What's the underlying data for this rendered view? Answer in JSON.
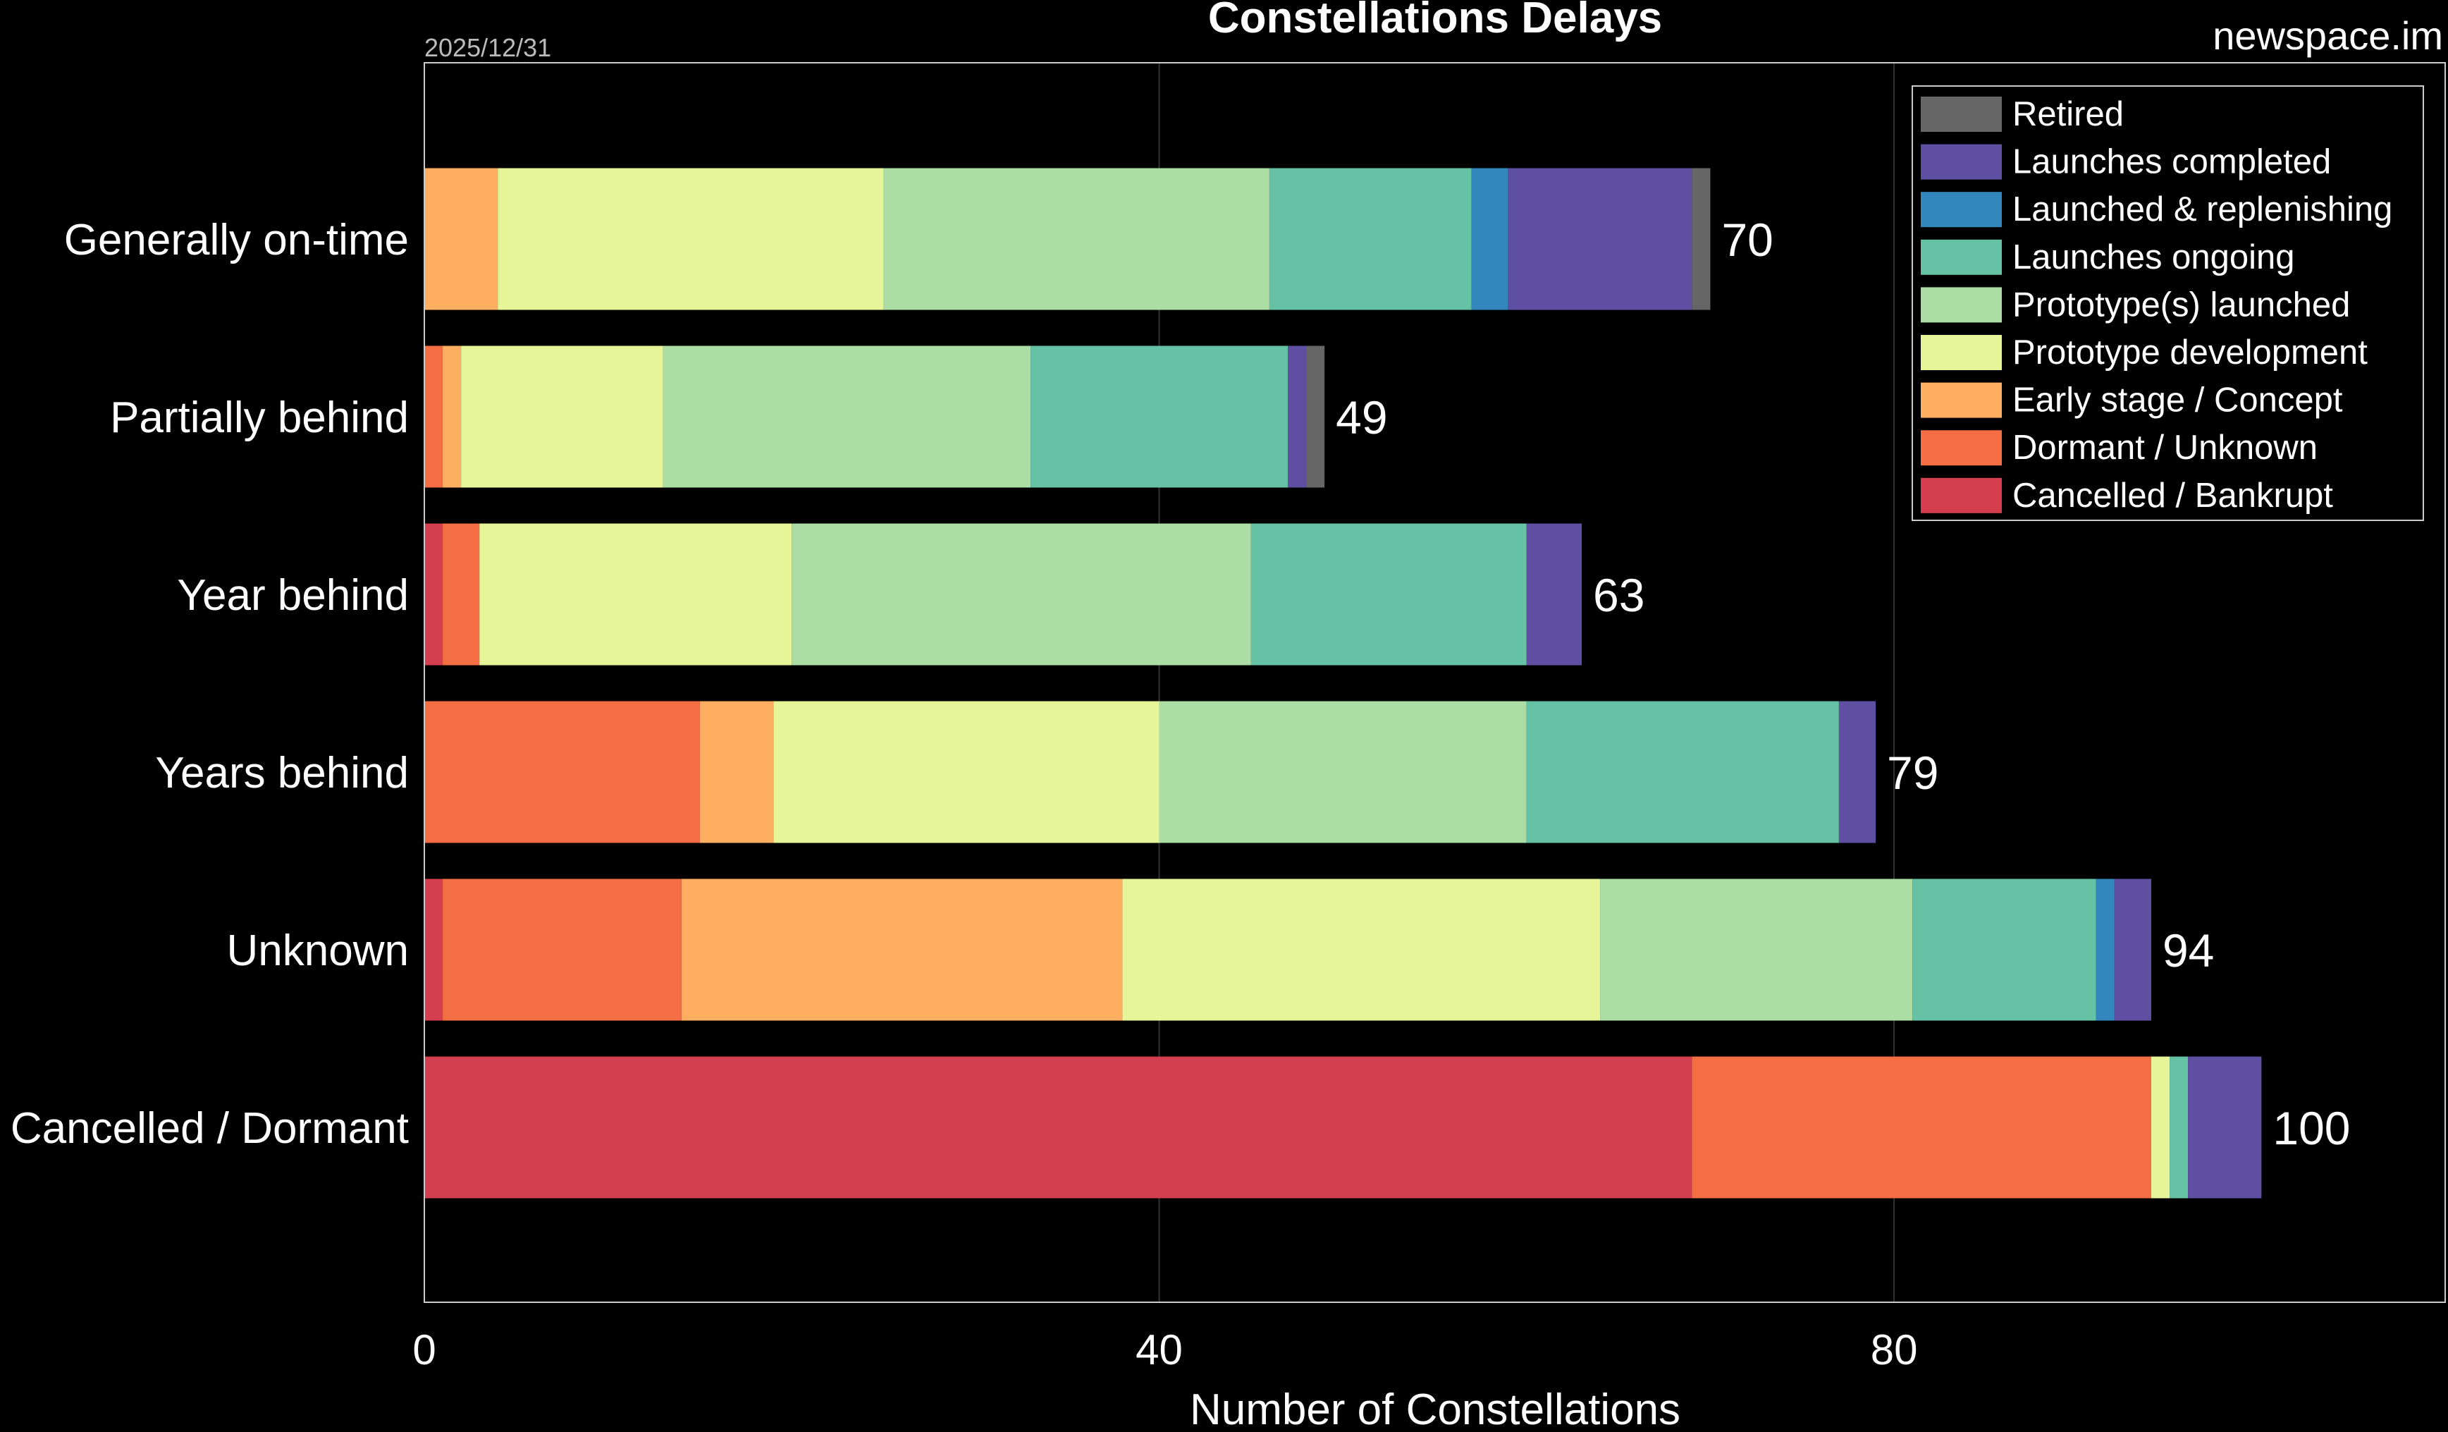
{
  "chart_data": {
    "type": "bar",
    "orientation": "horizontal",
    "stacked": true,
    "title": "Constellations Delays",
    "date": "2025/12/31",
    "source": "newspace.im",
    "xlabel": "Number of Constellations",
    "ylabel": "",
    "xlim": [
      0,
      110
    ],
    "xticks": [
      0,
      40,
      80
    ],
    "grid": true,
    "legend_position": "top-right",
    "categories": [
      "Generally on-time",
      "Partially behind",
      "Year behind",
      "Years behind",
      "Unknown",
      "Cancelled / Dormant"
    ],
    "totals": [
      70,
      49,
      63,
      79,
      94,
      100
    ],
    "series": [
      {
        "name": "Cancelled / Bankrupt",
        "color": "#d53e4f",
        "values": [
          0,
          0,
          1,
          0,
          1,
          69
        ]
      },
      {
        "name": "Dormant / Unknown",
        "color": "#f46d43",
        "values": [
          0,
          1,
          2,
          15,
          13,
          25
        ]
      },
      {
        "name": "Early stage / Concept",
        "color": "#fdae61",
        "values": [
          4,
          1,
          0,
          4,
          24,
          0
        ]
      },
      {
        "name": "Prototype development",
        "color": "#e6f598",
        "values": [
          21,
          11,
          17,
          21,
          26,
          1
        ]
      },
      {
        "name": "Prototype(s) launched",
        "color": "#abdda4",
        "values": [
          21,
          20,
          25,
          20,
          17,
          0
        ]
      },
      {
        "name": "Launches ongoing",
        "color": "#66c2a5",
        "values": [
          11,
          14,
          15,
          17,
          10,
          1
        ]
      },
      {
        "name": "Launched & replenishing",
        "color": "#3288bd",
        "values": [
          2,
          0,
          0,
          0,
          1,
          0
        ]
      },
      {
        "name": "Launches completed",
        "color": "#5e4fa2",
        "values": [
          10,
          1,
          3,
          2,
          2,
          4
        ]
      },
      {
        "name": "Retired",
        "color": "#666666",
        "values": [
          1,
          1,
          0,
          0,
          0,
          0
        ]
      }
    ]
  }
}
